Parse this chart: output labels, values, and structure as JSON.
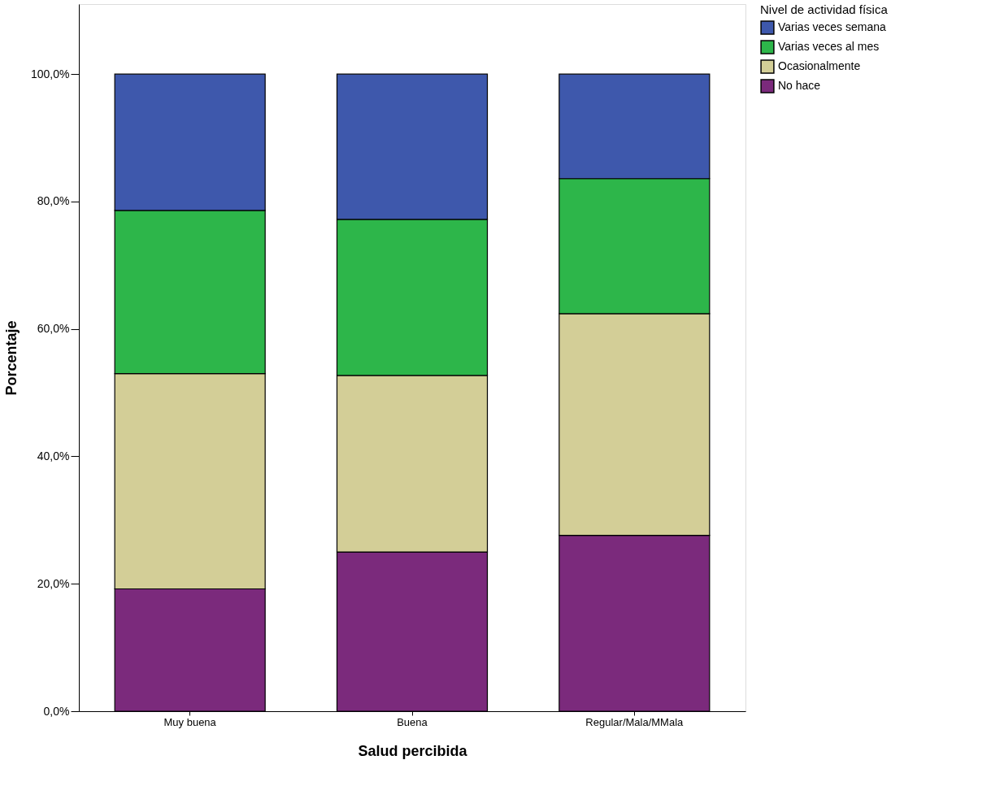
{
  "chart_data": {
    "type": "bar",
    "xlabel": "Salud percibida",
    "ylabel": "Porcentaje",
    "legend_title": "Nivel de actividad física",
    "categories": [
      "Muy buena",
      "Buena",
      "Regular/Mala/MMala"
    ],
    "stacked": true,
    "legend": "top right",
    "grid": false,
    "ylim": [
      0,
      111
    ],
    "yticks": [
      {
        "value": 0,
        "label": "0,0%"
      },
      {
        "value": 20,
        "label": "20,0%"
      },
      {
        "value": 40,
        "label": "40,0%"
      },
      {
        "value": 60,
        "label": "60,0%"
      },
      {
        "value": 80,
        "label": "80,0%"
      },
      {
        "value": 100,
        "label": "100,0%"
      }
    ],
    "series": [
      {
        "name": "No hace",
        "color": "#7b2a7c",
        "values": [
          19.2,
          25.0,
          27.6
        ]
      },
      {
        "name": "Ocasionalmente",
        "color": "#d3ce97",
        "values": [
          33.8,
          27.7,
          34.8
        ]
      },
      {
        "name": "Varias veces al mes",
        "color": "#2db64a",
        "values": [
          25.6,
          24.5,
          21.2
        ]
      },
      {
        "name": "Varias veces semana",
        "color": "#3e58ac",
        "values": [
          21.4,
          22.8,
          16.4
        ]
      }
    ]
  }
}
